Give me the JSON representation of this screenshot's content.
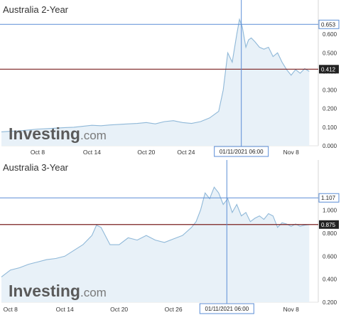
{
  "chart_data": [
    {
      "type": "area",
      "title": "Australia 2-Year",
      "watermark": {
        "main": "Investing",
        "suffix": ".com"
      },
      "ylim": [
        0,
        0.7
      ],
      "yticks": [
        0,
        0.1,
        0.2,
        0.3,
        0.4,
        0.5,
        0.6
      ],
      "ytick_labels": [
        "0.000",
        "0.100",
        "0.200",
        "0.300",
        "0.400",
        "0.500",
        "0.600"
      ],
      "xlim": [
        0,
        35
      ],
      "xticks": [
        {
          "x": 4,
          "label": "Oct 8"
        },
        {
          "x": 10,
          "label": "Oct 14"
        },
        {
          "x": 16,
          "label": "Oct 20"
        },
        {
          "x": 20.4,
          "label": "Oct 24"
        },
        {
          "x": 32,
          "label": "Nov 8"
        }
      ],
      "crosshair": {
        "x": 26.5,
        "y": 0.653,
        "x_label": "01/11/2021 06:00",
        "y_label": "0.653"
      },
      "price_line": {
        "y": 0.412,
        "label": "0.412"
      },
      "colors": {
        "line": "#8fb8d8",
        "fill": "#e8f1f8",
        "crosshair": "#5b8ed6",
        "price_line": "#7a1f1f"
      },
      "x": [
        0,
        1,
        2,
        3,
        4,
        5,
        6,
        7,
        8,
        9,
        10,
        11,
        12,
        13,
        14,
        15,
        16,
        17,
        18,
        19,
        20,
        21,
        22,
        23,
        24,
        24.5,
        25,
        25.5,
        26,
        26.3,
        26.6,
        27,
        27.3,
        27.6,
        28,
        28.5,
        29,
        29.5,
        30,
        30.5,
        31,
        31.5,
        32,
        32.5,
        33,
        33.5,
        34
      ],
      "y": [
        0.075,
        0.078,
        0.08,
        0.085,
        0.09,
        0.092,
        0.095,
        0.098,
        0.1,
        0.105,
        0.11,
        0.108,
        0.112,
        0.115,
        0.118,
        0.12,
        0.125,
        0.118,
        0.13,
        0.135,
        0.125,
        0.12,
        0.13,
        0.15,
        0.185,
        0.3,
        0.5,
        0.45,
        0.6,
        0.68,
        0.64,
        0.53,
        0.57,
        0.58,
        0.56,
        0.53,
        0.52,
        0.53,
        0.48,
        0.5,
        0.45,
        0.41,
        0.38,
        0.41,
        0.39,
        0.415,
        0.4
      ]
    },
    {
      "type": "area",
      "title": "Australia 3-Year",
      "watermark": {
        "main": "Investing",
        "suffix": ".com"
      },
      "ylim": [
        0.2,
        1.3
      ],
      "yticks": [
        0.2,
        0.4,
        0.6,
        0.8,
        1.0
      ],
      "ytick_labels": [
        "0.200",
        "0.400",
        "0.600",
        "0.800",
        "1.000"
      ],
      "xlim": [
        0,
        35
      ],
      "xticks": [
        {
          "x": 1,
          "label": "Oct 8"
        },
        {
          "x": 7,
          "label": "Oct 14"
        },
        {
          "x": 13,
          "label": "Oct 20"
        },
        {
          "x": 19,
          "label": "Oct 26"
        },
        {
          "x": 32,
          "label": "Nov 8"
        }
      ],
      "crosshair": {
        "x": 24.9,
        "y": 1.107,
        "x_label": "01/11/2021 06:00",
        "y_label": "1.107"
      },
      "price_line": {
        "y": 0.875,
        "label": "0.875"
      },
      "colors": {
        "line": "#8fb8d8",
        "fill": "#e8f1f8",
        "crosshair": "#5b8ed6",
        "price_line": "#7a1f1f"
      },
      "x": [
        0,
        1,
        2,
        3,
        4,
        5,
        6,
        7,
        8,
        9,
        10,
        10.5,
        11,
        12,
        13,
        14,
        15,
        16,
        17,
        18,
        19,
        20,
        21,
        21.5,
        22,
        22.5,
        23,
        23.5,
        24,
        24.5,
        25,
        25.5,
        26,
        26.5,
        27,
        27.5,
        28,
        28.5,
        29,
        29.5,
        30,
        30.5,
        31,
        31.5,
        32,
        32.5,
        33,
        33.5,
        34
      ],
      "y": [
        0.42,
        0.48,
        0.5,
        0.53,
        0.55,
        0.57,
        0.58,
        0.6,
        0.65,
        0.7,
        0.78,
        0.87,
        0.85,
        0.7,
        0.7,
        0.76,
        0.74,
        0.78,
        0.74,
        0.72,
        0.75,
        0.78,
        0.85,
        0.9,
        1.0,
        1.15,
        1.1,
        1.2,
        1.15,
        1.05,
        1.1,
        0.98,
        1.05,
        0.95,
        0.98,
        0.9,
        0.93,
        0.95,
        0.92,
        0.97,
        0.95,
        0.85,
        0.89,
        0.88,
        0.86,
        0.88,
        0.86,
        0.87,
        0.875
      ]
    }
  ]
}
